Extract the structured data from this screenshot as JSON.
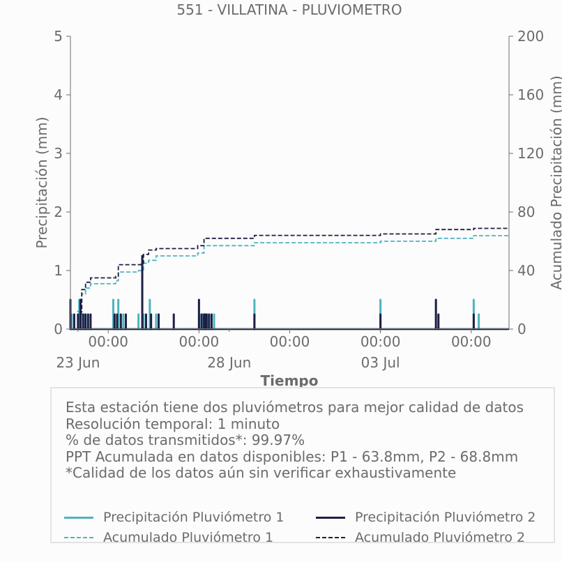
{
  "chart_data": {
    "type": "bar",
    "title": "551 - VILLATINA - PLUVIOMETRO",
    "xlabel": "Tiempo",
    "ylabel": "Precipitación (mm)",
    "y2label": "Acumulado Precipitación (mm)",
    "ylim": [
      0,
      5
    ],
    "y2lim": [
      0,
      200
    ],
    "yticks": [
      "0",
      "1",
      "2",
      "3",
      "4",
      "5"
    ],
    "y2ticks": [
      "0",
      "40",
      "80",
      "120",
      "160",
      "200"
    ],
    "xlim": [
      "2023-06-22T18:00",
      "2023-07-07T06:00"
    ],
    "xticks_time": [
      "00:00",
      "00:00",
      "00:00",
      "00:00",
      "00:00"
    ],
    "xticks_time_at": [
      "2023-06-24T00:00",
      "2023-06-27T00:00",
      "2023-06-30T00:00",
      "2023-07-03T00:00",
      "2023-07-06T00:00"
    ],
    "xticks_date": [
      "23 Jun",
      "28 Jun",
      "03 Jul"
    ],
    "xticks_date_at": [
      "2023-06-23T00:00",
      "2023-06-28T00:00",
      "2023-07-03T00:00"
    ],
    "grid": false,
    "series": [
      {
        "name": "Precipitación Pluviómetro 1",
        "kind": "bars",
        "axis": "left",
        "color": "#4fb3bf",
        "points": [
          [
            "2023-06-22T19:00",
            0.25
          ],
          [
            "2023-06-23T01:00",
            0.5
          ],
          [
            "2023-06-23T05:00",
            0.25
          ],
          [
            "2023-06-24T04:00",
            0.5
          ],
          [
            "2023-06-24T08:00",
            0.5
          ],
          [
            "2023-06-24T12:00",
            0.25
          ],
          [
            "2023-06-25T00:00",
            0.25
          ],
          [
            "2023-06-25T04:00",
            0.25
          ],
          [
            "2023-06-25T09:00",
            0.5
          ],
          [
            "2023-06-25T14:00",
            0.25
          ],
          [
            "2023-06-27T00:00",
            0.25
          ],
          [
            "2023-06-27T03:00",
            0.25
          ],
          [
            "2023-06-27T07:00",
            0.25
          ],
          [
            "2023-06-27T12:00",
            0.25
          ],
          [
            "2023-06-28T20:00",
            0.5
          ],
          [
            "2023-07-03T00:00",
            0.5
          ],
          [
            "2023-07-06T02:00",
            0.5
          ],
          [
            "2023-07-06T06:00",
            0.25
          ]
        ]
      },
      {
        "name": "Precipitación Pluviómetro 2",
        "kind": "bars",
        "axis": "left",
        "color": "#1c1f45",
        "points": [
          [
            "2023-06-22T18:00",
            0.5
          ],
          [
            "2023-06-22T21:00",
            0.25
          ],
          [
            "2023-06-23T00:00",
            0.25
          ],
          [
            "2023-06-23T02:00",
            0.5
          ],
          [
            "2023-06-23T04:00",
            0.25
          ],
          [
            "2023-06-23T06:00",
            0.25
          ],
          [
            "2023-06-23T08:00",
            0.25
          ],
          [
            "2023-06-23T10:00",
            0.25
          ],
          [
            "2023-06-24T05:00",
            0.25
          ],
          [
            "2023-06-24T07:00",
            0.25
          ],
          [
            "2023-06-24T10:00",
            0.25
          ],
          [
            "2023-06-24T14:00",
            0.25
          ],
          [
            "2023-06-25T03:00",
            1.25
          ],
          [
            "2023-06-25T06:00",
            0.25
          ],
          [
            "2023-06-25T10:00",
            0.25
          ],
          [
            "2023-06-25T16:00",
            0.25
          ],
          [
            "2023-06-26T04:00",
            0.25
          ],
          [
            "2023-06-27T00:00",
            0.5
          ],
          [
            "2023-06-27T02:00",
            0.25
          ],
          [
            "2023-06-27T04:00",
            0.25
          ],
          [
            "2023-06-27T05:00",
            0.25
          ],
          [
            "2023-06-27T06:00",
            0.25
          ],
          [
            "2023-06-27T08:00",
            0.25
          ],
          [
            "2023-06-27T10:00",
            0.25
          ],
          [
            "2023-06-28T20:00",
            0.25
          ],
          [
            "2023-07-03T00:00",
            0.25
          ],
          [
            "2023-07-04T20:00",
            0.5
          ],
          [
            "2023-07-04T22:00",
            0.25
          ],
          [
            "2023-07-06T02:00",
            0.25
          ]
        ]
      },
      {
        "name": "Acumulado Pluviómetro 1",
        "kind": "step",
        "axis": "right",
        "color": "#4fb3bf",
        "points": [
          [
            "2023-06-22T18:00",
            0
          ],
          [
            "2023-06-23T00:00",
            10
          ],
          [
            "2023-06-23T03:00",
            24
          ],
          [
            "2023-06-23T06:00",
            28
          ],
          [
            "2023-06-23T10:00",
            31
          ],
          [
            "2023-06-24T06:00",
            33
          ],
          [
            "2023-06-24T08:00",
            39
          ],
          [
            "2023-06-25T00:00",
            40
          ],
          [
            "2023-06-25T04:00",
            45
          ],
          [
            "2023-06-25T08:00",
            47
          ],
          [
            "2023-06-25T14:00",
            50
          ],
          [
            "2023-06-26T23:00",
            52
          ],
          [
            "2023-06-27T04:00",
            57
          ],
          [
            "2023-06-28T20:00",
            59
          ],
          [
            "2023-07-03T00:00",
            60
          ],
          [
            "2023-07-04T20:00",
            62
          ],
          [
            "2023-07-06T02:00",
            63.8
          ]
        ]
      },
      {
        "name": "Acumulado Pluviómetro 2",
        "kind": "step",
        "axis": "right",
        "color": "#1c1f45",
        "points": [
          [
            "2023-06-22T18:00",
            0
          ],
          [
            "2023-06-23T00:00",
            12
          ],
          [
            "2023-06-23T03:00",
            27
          ],
          [
            "2023-06-23T06:00",
            32
          ],
          [
            "2023-06-23T10:00",
            35
          ],
          [
            "2023-06-24T06:00",
            36
          ],
          [
            "2023-06-24T08:00",
            44
          ],
          [
            "2023-06-25T02:00",
            45
          ],
          [
            "2023-06-25T04:00",
            51
          ],
          [
            "2023-06-25T08:00",
            54
          ],
          [
            "2023-06-25T14:00",
            55
          ],
          [
            "2023-06-26T23:00",
            57
          ],
          [
            "2023-06-27T04:00",
            62
          ],
          [
            "2023-06-28T20:00",
            64
          ],
          [
            "2023-07-03T00:00",
            65
          ],
          [
            "2023-07-04T20:00",
            68
          ],
          [
            "2023-07-06T02:00",
            68.8
          ]
        ]
      }
    ]
  },
  "info": {
    "lines": [
      "Esta estación tiene dos pluviómetros para mejor calidad de datos",
      "Resolución temporal: 1 minuto",
      "% de datos transmitidos*: 99.97%",
      "PPT Acumulada en datos disponibles: P1 - 63.8mm, P2 - 68.8mm",
      "*Calidad de los datos aún sin verificar exhaustivamente"
    ]
  },
  "legend": {
    "items": [
      {
        "label": "Precipitación Pluviómetro 1",
        "color": "#4fb3bf",
        "style": "solid"
      },
      {
        "label": "Precipitación Pluviómetro 2",
        "color": "#1c1f45",
        "style": "solid"
      },
      {
        "label": "Acumulado Pluviómetro 1",
        "color": "#4fb3bf",
        "style": "dashed"
      },
      {
        "label": "Acumulado Pluviómetro 2",
        "color": "#1c1f45",
        "style": "dashed"
      }
    ]
  }
}
